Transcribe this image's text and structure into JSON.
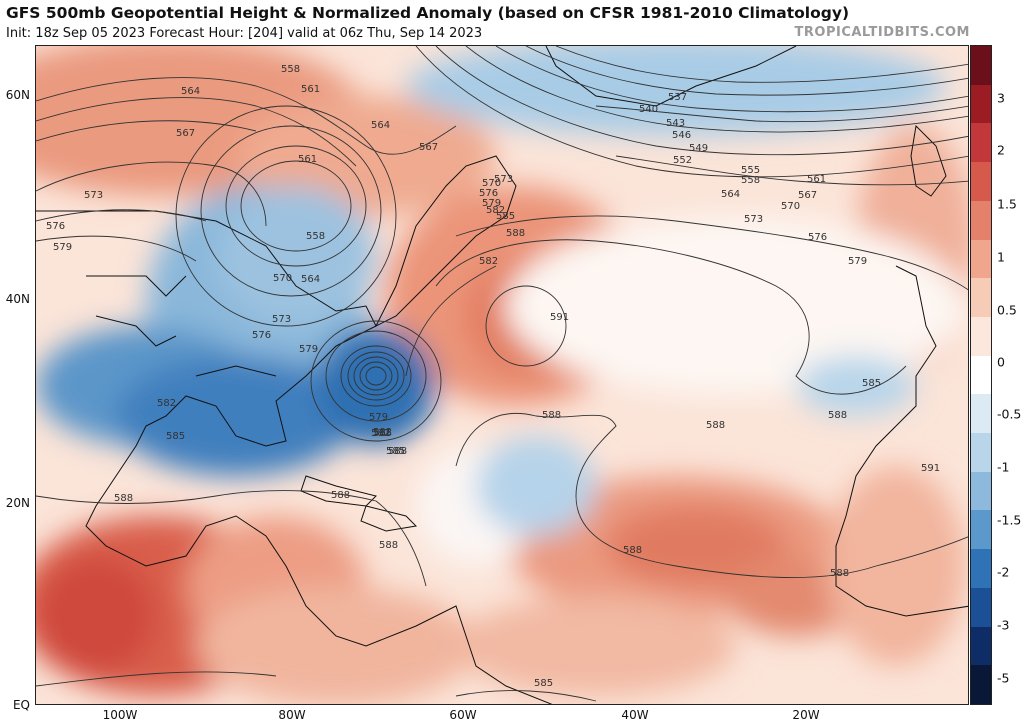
{
  "header": {
    "title": "GFS 500mb Geopotential Height & Normalized Anomaly (based on CFSR 1981-2010 Climatology)",
    "subtitle": "Init: 18z Sep 05 2023   Forecast Hour: [204]   valid at 06z Thu, Sep 14 2023",
    "brand": "TROPICALTIDBITS.COM"
  },
  "axes": {
    "lat_labels": [
      "60N",
      "40N",
      "20N",
      "EQ"
    ],
    "lon_labels": [
      "100W",
      "80W",
      "60W",
      "40W",
      "20W"
    ]
  },
  "colorbar": {
    "labels": [
      "3",
      "2",
      "1.5",
      "1",
      "0.5",
      "0",
      "-0.5",
      "-1",
      "-1.5",
      "-2",
      "-3",
      "-5"
    ],
    "colors": [
      "#6b0f1a",
      "#9c1c24",
      "#c2383a",
      "#d65a4c",
      "#e4816b",
      "#efa68c",
      "#f6ccb7",
      "#fbe7dc",
      "#ffffff",
      "#dceaf4",
      "#b8d5ea",
      "#8cb9dc",
      "#5b98cc",
      "#2f72b5",
      "#1b4f96",
      "#0e2d66",
      "#0a1838"
    ]
  },
  "contours": {
    "labels": [
      "558",
      "564",
      "561",
      "567",
      "564",
      "567",
      "561",
      "573",
      "576",
      "579",
      "570",
      "573",
      "576",
      "579",
      "582",
      "585",
      "588",
      "591",
      "537",
      "540",
      "543",
      "546",
      "549",
      "552",
      "555",
      "558",
      "561",
      "564",
      "567",
      "570",
      "573",
      "576",
      "579",
      "558",
      "564",
      "570",
      "573",
      "576",
      "579",
      "582",
      "585",
      "588",
      "582",
      "585",
      "588",
      "588",
      "588",
      "588",
      "588",
      "591",
      "582",
      "585",
      "588",
      "585",
      "579",
      "582",
      "585",
      "588",
      "588"
    ]
  }
}
